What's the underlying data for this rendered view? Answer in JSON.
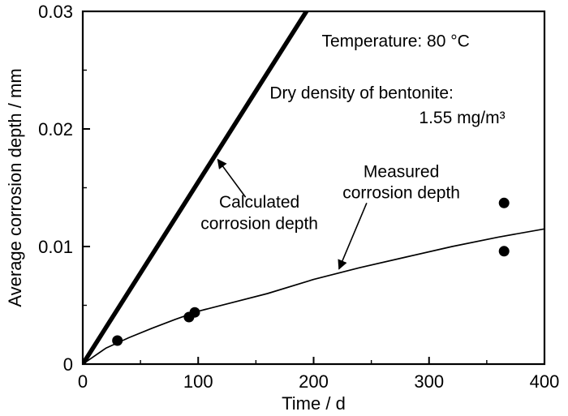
{
  "figure": {
    "background": "#ffffff",
    "ink": "#000000"
  },
  "chart_data": {
    "type": "line",
    "title": "",
    "xlabel": "Time / d",
    "ylabel": "Average corrosion depth / mm",
    "xlim": [
      0,
      400
    ],
    "ylim": [
      0,
      0.03
    ],
    "xticks": [
      0,
      100,
      200,
      300,
      400
    ],
    "xtick_labels": [
      "0",
      "100",
      "200",
      "300",
      "400"
    ],
    "xminor": [
      50,
      150,
      250,
      350
    ],
    "yticks": [
      0,
      0.01,
      0.02,
      0.03
    ],
    "ytick_labels": [
      "0",
      "0.01",
      "0.02",
      "0.03"
    ],
    "yminor": [
      0.005,
      0.015,
      0.025
    ],
    "grid": false,
    "legend_position": "none",
    "series": [
      {
        "name": "Calculated corrosion depth",
        "style": "thick-line",
        "points": [
          [
            0,
            0
          ],
          [
            197,
            0.0305
          ]
        ]
      },
      {
        "name": "Measured corrosion depth (fit curve)",
        "style": "thin-line",
        "points": [
          [
            0,
            0
          ],
          [
            20,
            0.00135
          ],
          [
            40,
            0.00225
          ],
          [
            60,
            0.00305
          ],
          [
            80,
            0.0038
          ],
          [
            100,
            0.0045
          ],
          [
            130,
            0.00525
          ],
          [
            160,
            0.006
          ],
          [
            200,
            0.0072
          ],
          [
            240,
            0.0082
          ],
          [
            280,
            0.0091
          ],
          [
            320,
            0.01
          ],
          [
            360,
            0.0108
          ],
          [
            400,
            0.0115
          ]
        ]
      },
      {
        "name": "Measured corrosion depth (data points)",
        "style": "scatter",
        "points": [
          [
            30,
            0.002
          ],
          [
            92,
            0.004
          ],
          [
            97,
            0.0044
          ],
          [
            365,
            0.0137
          ],
          [
            365,
            0.0096
          ]
        ]
      }
    ],
    "annotations": [
      {
        "id": "temperature",
        "text": "Temperature: 80 °C",
        "x": 207,
        "y": 0.027,
        "align": "start"
      },
      {
        "id": "dry-density-line1",
        "text": "Dry density of bentonite:",
        "x": 162,
        "y": 0.0226,
        "align": "start"
      },
      {
        "id": "dry-density-line2",
        "text": "1.55 mg/m³",
        "x": 366,
        "y": 0.0205,
        "align": "end"
      },
      {
        "id": "calculated-label-line1",
        "text": "Calculated",
        "x": 153,
        "y": 0.0133,
        "align": "middle"
      },
      {
        "id": "calculated-label-line2",
        "text": "corrosion depth",
        "x": 153,
        "y": 0.0115,
        "align": "middle"
      },
      {
        "id": "measured-label-line1",
        "text": "Measured",
        "x": 276,
        "y": 0.0159,
        "align": "middle"
      },
      {
        "id": "measured-label-line2",
        "text": "corrosion depth",
        "x": 276,
        "y": 0.0141,
        "align": "middle"
      }
    ],
    "arrows": [
      {
        "id": "calculated-arrow",
        "from": [
          141,
          0.0142
        ],
        "to": [
          117,
          0.0174
        ]
      },
      {
        "id": "measured-arrow",
        "from": [
          246,
          0.0137
        ],
        "to": [
          222,
          0.0081
        ]
      }
    ]
  }
}
